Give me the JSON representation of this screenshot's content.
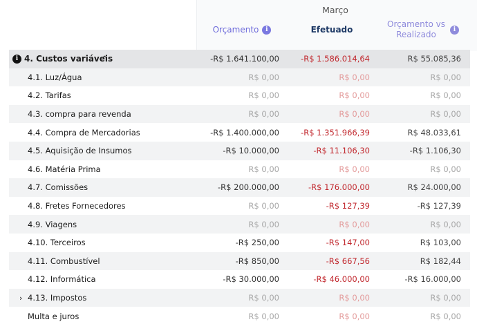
{
  "header": {
    "month": "Março",
    "col_budget": "Orçamento",
    "col_actual": "Efetuado",
    "col_compare": "Orçamento vs Realizado"
  },
  "group": {
    "label": "4. Custos variáveis",
    "budget": "-R$ 1.641.100,00",
    "actual": "-R$ 1.586.014,64",
    "compare": "R$ 55.085,36"
  },
  "rows": [
    {
      "label": "4.1. Luz/Água",
      "budget": "R$ 0,00",
      "actual": "R$ 0,00",
      "compare": "R$ 0,00"
    },
    {
      "label": "4.2. Tarifas",
      "budget": "R$ 0,00",
      "actual": "R$ 0,00",
      "compare": "R$ 0,00"
    },
    {
      "label": "4.3. compra para revenda",
      "budget": "R$ 0,00",
      "actual": "R$ 0,00",
      "compare": "R$ 0,00"
    },
    {
      "label": "4.4. Compra de Mercadorias",
      "budget": "-R$ 1.400.000,00",
      "actual": "-R$ 1.351.966,39",
      "compare": "R$ 48.033,61"
    },
    {
      "label": "4.5. Aquisição de Insumos",
      "budget": "-R$ 10.000,00",
      "actual": "-R$ 11.106,30",
      "compare": "-R$ 1.106,30"
    },
    {
      "label": "4.6. Matéria Prima",
      "budget": "R$ 0,00",
      "actual": "R$ 0,00",
      "compare": "R$ 0,00"
    },
    {
      "label": "4.7. Comissões",
      "budget": "-R$ 200.000,00",
      "actual": "-R$ 176.000,00",
      "compare": "R$ 24.000,00"
    },
    {
      "label": "4.8. Fretes Fornecedores",
      "budget": "R$ 0,00",
      "actual": "-R$ 127,39",
      "compare": "-R$ 127,39"
    },
    {
      "label": "4.9. Viagens",
      "budget": "R$ 0,00",
      "actual": "R$ 0,00",
      "compare": "R$ 0,00"
    },
    {
      "label": "4.10. Terceiros",
      "budget": "-R$ 250,00",
      "actual": "-R$ 147,00",
      "compare": "R$ 103,00"
    },
    {
      "label": "4.11. Combustível",
      "budget": "-R$ 850,00",
      "actual": "-R$ 667,56",
      "compare": "R$ 182,44"
    },
    {
      "label": "4.12. Informática",
      "budget": "-R$ 30.000,00",
      "actual": "-R$ 46.000,00",
      "compare": "-R$ 16.000,00"
    },
    {
      "label": "4.13. Impostos",
      "budget": "R$ 0,00",
      "actual": "R$ 0,00",
      "compare": "R$ 0,00",
      "expandable": true
    },
    {
      "label": "Multa e juros",
      "budget": "R$ 0,00",
      "actual": "R$ 0,00",
      "compare": "R$ 0,00"
    }
  ],
  "icons": {
    "info": "info-icon",
    "group": "info-circle-icon",
    "collapse": "chevron-up-icon",
    "expand": "chevron-right-icon"
  }
}
